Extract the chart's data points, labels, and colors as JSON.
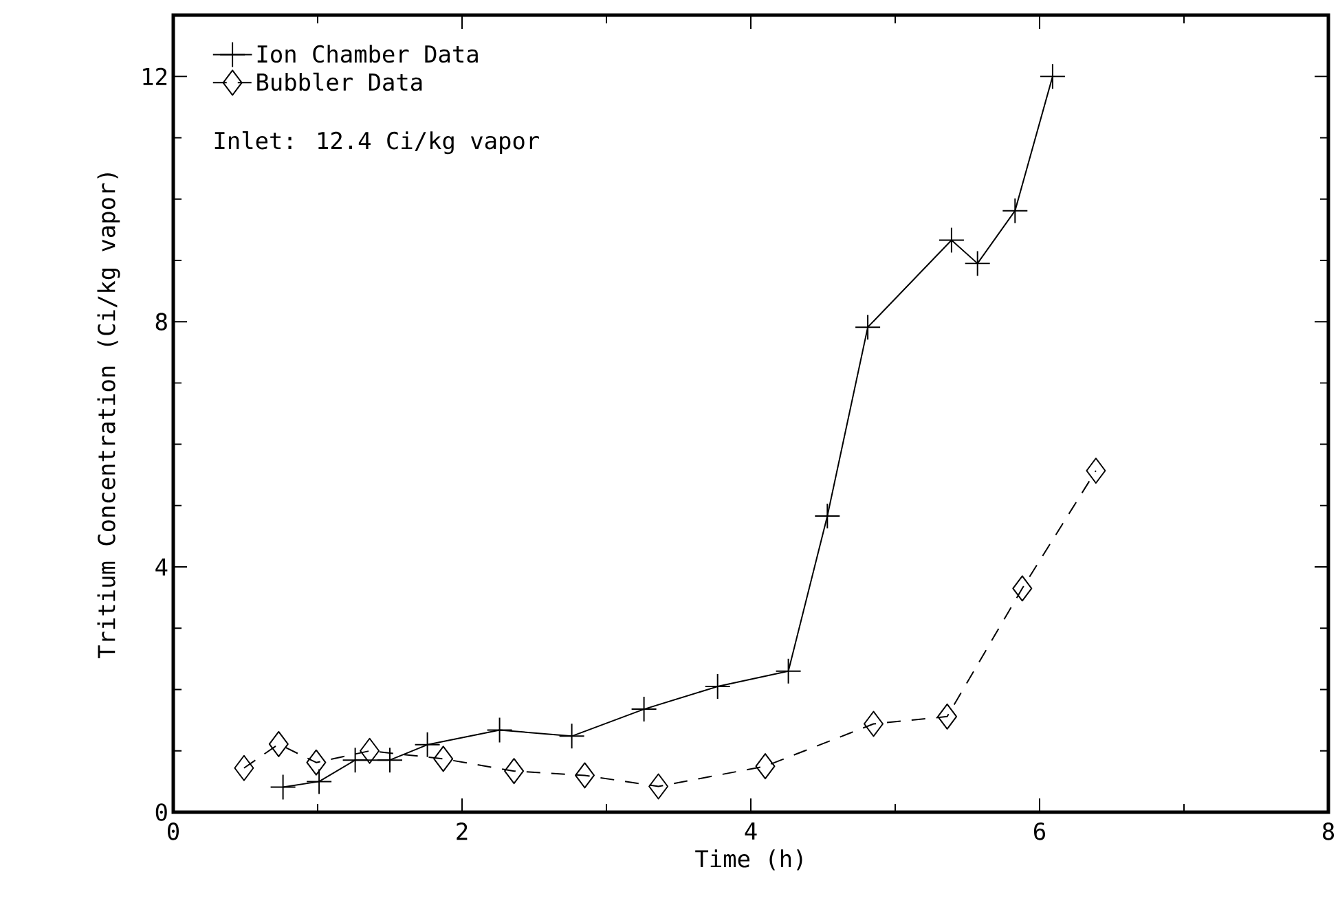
{
  "chart_data": {
    "type": "line",
    "xlabel": "Time (h)",
    "ylabel": "Tritium Concentration (Ci/kg vapor)",
    "xlim": [
      0,
      8
    ],
    "xticks": [
      0,
      2,
      4,
      6,
      8
    ],
    "ylim": [
      0,
      13
    ],
    "yticks": [
      0,
      4,
      8,
      12
    ],
    "grid": false,
    "legend": "top left",
    "annotations": [
      "Inlet: 12.4 Ci/kg vapor"
    ],
    "series": [
      {
        "name": "Ion Chamber Data",
        "color": "#000000",
        "marker": "cross",
        "line_style": "solid",
        "x": [
          0.76,
          1.01,
          1.26,
          1.5,
          1.76,
          2.26,
          2.76,
          3.26,
          3.77,
          4.26,
          4.53,
          4.81,
          5.39,
          5.57,
          5.83,
          6.09
        ],
        "values": [
          0.41,
          0.5,
          0.85,
          0.85,
          1.1,
          1.34,
          1.24,
          1.68,
          2.05,
          2.3,
          4.83,
          7.91,
          9.33,
          8.95,
          9.81,
          12.0
        ]
      },
      {
        "name": "Bubbler Data",
        "color": "#000000",
        "marker": "diamond",
        "line_style": "dashed",
        "x": [
          0.49,
          0.73,
          0.99,
          1.36,
          1.87,
          2.36,
          2.85,
          3.36,
          4.1,
          4.85,
          5.36,
          5.88,
          6.39
        ],
        "values": [
          0.72,
          1.11,
          0.81,
          1.0,
          0.87,
          0.67,
          0.6,
          0.42,
          0.75,
          1.44,
          1.56,
          3.65,
          5.57
        ]
      }
    ]
  }
}
